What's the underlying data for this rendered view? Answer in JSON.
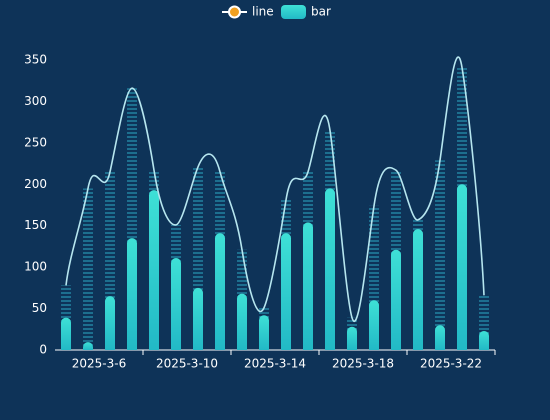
{
  "chart_data": {
    "type": "bar",
    "categories": [
      null,
      "2025-3-6",
      null,
      null,
      null,
      "2025-3-10",
      null,
      null,
      null,
      "2025-3-14",
      null,
      null,
      null,
      "2025-3-18",
      null,
      null,
      null,
      "2025-3-22",
      null,
      null
    ],
    "series": [
      {
        "name": "line",
        "type": "line",
        "color": "#b6e6ef",
        "values": [
          78,
          195,
          215,
          316,
          217,
          151,
          221,
          215,
          121,
          51,
          181,
          215,
          265,
          39,
          174,
          217,
          157,
          229,
          341,
          66
        ]
      },
      {
        "name": "bar",
        "type": "bar",
        "color": "#3ee0d6",
        "values": [
          39,
          7,
          65,
          135,
          193,
          111,
          75,
          141,
          68,
          42,
          141,
          154,
          195,
          28,
          60,
          121,
          146,
          30,
          200,
          23
        ]
      }
    ],
    "ylim": [
      0,
      350
    ],
    "yticks": [
      0,
      50,
      100,
      150,
      200,
      250,
      300,
      350
    ],
    "grid": false,
    "legend": "top"
  }
}
